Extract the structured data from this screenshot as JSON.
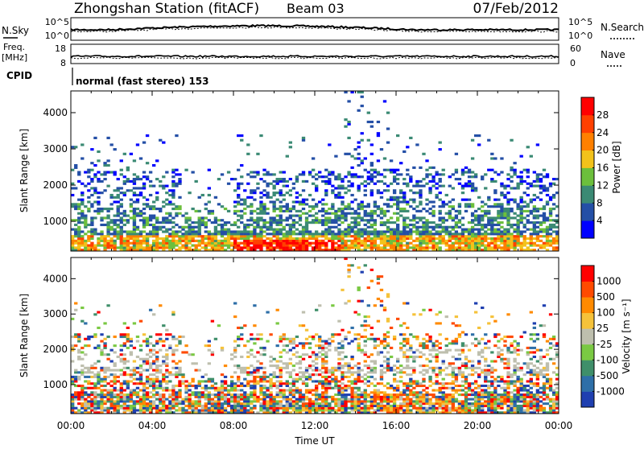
{
  "header": {
    "station": "Zhongshan Station (fitACF)",
    "beam": "Beam 03",
    "date": "07/Feb/2012"
  },
  "panels": {
    "nsky_label": "N.Sky",
    "nsky_ticks": [
      "10^5",
      "10^0"
    ],
    "nsearch_label": "N.Search",
    "nsearch_ticks": [
      "10^5",
      "10^0"
    ],
    "freq_label": "Freq.",
    "freq_unit": "[MHz]",
    "freq_ticks": [
      "18",
      "8"
    ],
    "nave_label": "Nave",
    "nave_ticks": [
      "60",
      "0"
    ],
    "cpid_label": "CPID",
    "cpid_value": "normal (fast stereo) 153"
  },
  "colors": {
    "power_scale": [
      "#0000ff",
      "#244fa6",
      "#3b8a74",
      "#6cbf3c",
      "#f2c21b",
      "#ff8000",
      "#ff4000",
      "#ff0000"
    ],
    "velocity_scale": [
      "#1f3fb0",
      "#2e6fa8",
      "#3f8f6a",
      "#7ac943",
      "#bebfae",
      "#f5c23a",
      "#ff8a00",
      "#ff4a00",
      "#ff0000"
    ]
  },
  "chart_data": [
    {
      "type": "heatmap",
      "title": "Power",
      "ylabel": "Slant Range [km]",
      "ylim": [
        180,
        4600
      ],
      "yticks": [
        "1000",
        "2000",
        "3000",
        "4000"
      ],
      "xticks": [
        "00:00",
        "04:00",
        "08:00",
        "12:00",
        "16:00",
        "20:00",
        "00:00"
      ],
      "colorbar_label": "Power [dB]",
      "colorbar_ticks": [
        "28",
        "24",
        "20",
        "16",
        "12",
        "8",
        "4"
      ],
      "colorbar_range": [
        0,
        32
      ]
    },
    {
      "type": "heatmap",
      "title": "Velocity",
      "ylabel": "Slant Range [km]",
      "ylim": [
        180,
        4600
      ],
      "yticks": [
        "1000",
        "2000",
        "3000",
        "4000"
      ],
      "xticks": [
        "00:00",
        "04:00",
        "08:00",
        "12:00",
        "16:00",
        "20:00",
        "00:00"
      ],
      "xlabel": "Time UT",
      "colorbar_label": "Velocity [m s⁻¹]",
      "colorbar_ticks": [
        "1000",
        "500",
        "100",
        "25",
        "-25",
        "-100",
        "-500",
        "-1000"
      ]
    }
  ]
}
